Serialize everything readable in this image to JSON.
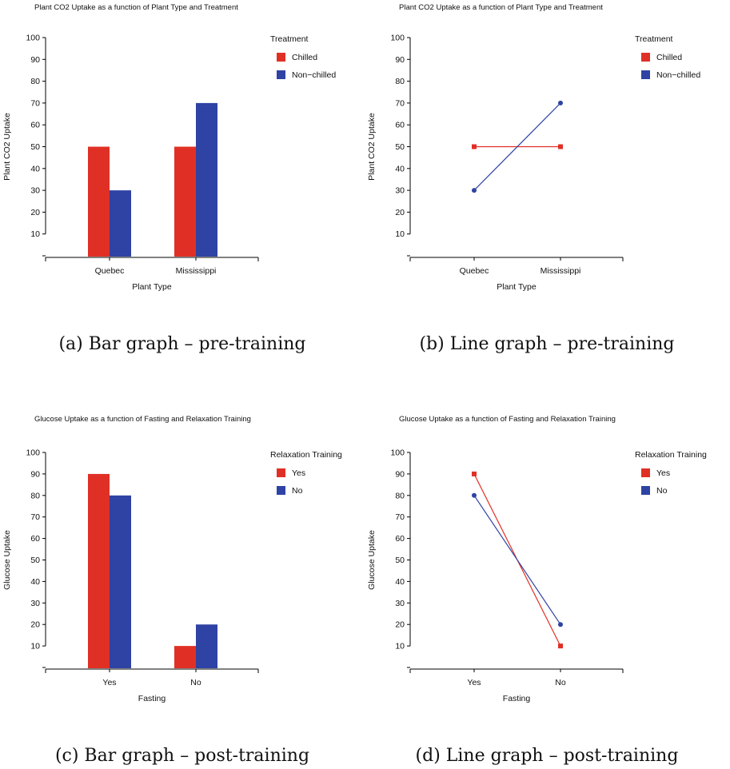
{
  "chart_data": [
    {
      "id": "a",
      "type": "bar",
      "title": "Plant CO2 Uptake as a function of Plant Type and Treatment",
      "xlabel": "Plant Type",
      "ylabel": "Plant CO2 Uptake",
      "categories": [
        "Quebec",
        "Mississippi"
      ],
      "ylim": [
        0,
        100
      ],
      "yticks": [
        10,
        20,
        30,
        40,
        50,
        60,
        70,
        80,
        90,
        100
      ],
      "legend_title": "Treatment",
      "legend_position": "top-right",
      "series": [
        {
          "name": "Chilled",
          "color": "#e03025",
          "values": [
            50,
            50
          ]
        },
        {
          "name": "Non−chilled",
          "color": "#2e43a3",
          "values": [
            30,
            70
          ]
        }
      ],
      "caption": "(a) Bar graph – pre-training"
    },
    {
      "id": "b",
      "type": "line",
      "title": "Plant CO2 Uptake as a function of Plant Type and Treatment",
      "xlabel": "Plant Type",
      "ylabel": "Plant CO2 Uptake",
      "categories": [
        "Quebec",
        "Mississippi"
      ],
      "ylim": [
        0,
        100
      ],
      "yticks": [
        10,
        20,
        30,
        40,
        50,
        60,
        70,
        80,
        90,
        100
      ],
      "legend_title": "Treatment",
      "legend_position": "top-right",
      "series": [
        {
          "name": "Chilled",
          "color": "#e03025",
          "marker": "square",
          "values": [
            50,
            50
          ]
        },
        {
          "name": "Non−chilled",
          "color": "#2e43a3",
          "marker": "circle",
          "values": [
            30,
            70
          ]
        }
      ],
      "caption": "(b) Line graph – pre-training"
    },
    {
      "id": "c",
      "type": "bar",
      "title": "Glucose Uptake as a function of Fasting and Relaxation Training",
      "xlabel": "Fasting",
      "ylabel": "Glucose Uptake",
      "categories": [
        "Yes",
        "No"
      ],
      "ylim": [
        0,
        100
      ],
      "yticks": [
        10,
        20,
        30,
        40,
        50,
        60,
        70,
        80,
        90,
        100
      ],
      "legend_title": "Relaxation Training",
      "legend_position": "top-right",
      "series": [
        {
          "name": "Yes",
          "color": "#e03025",
          "values": [
            90,
            10
          ]
        },
        {
          "name": "No",
          "color": "#2e43a3",
          "values": [
            80,
            20
          ]
        }
      ],
      "caption": "(c) Bar graph – post-training"
    },
    {
      "id": "d",
      "type": "line",
      "title": "Glucose Uptake as a function of Fasting and Relaxation Training",
      "xlabel": "Fasting",
      "ylabel": "Glucose Uptake",
      "categories": [
        "Yes",
        "No"
      ],
      "ylim": [
        0,
        100
      ],
      "yticks": [
        10,
        20,
        30,
        40,
        50,
        60,
        70,
        80,
        90,
        100
      ],
      "legend_title": "Relaxation Training",
      "legend_position": "top-right",
      "series": [
        {
          "name": "Yes",
          "color": "#e03025",
          "marker": "square",
          "values": [
            90,
            10
          ]
        },
        {
          "name": "No",
          "color": "#2e43a3",
          "marker": "circle",
          "values": [
            80,
            20
          ]
        }
      ],
      "caption": "(d) Line graph – post-training"
    }
  ]
}
